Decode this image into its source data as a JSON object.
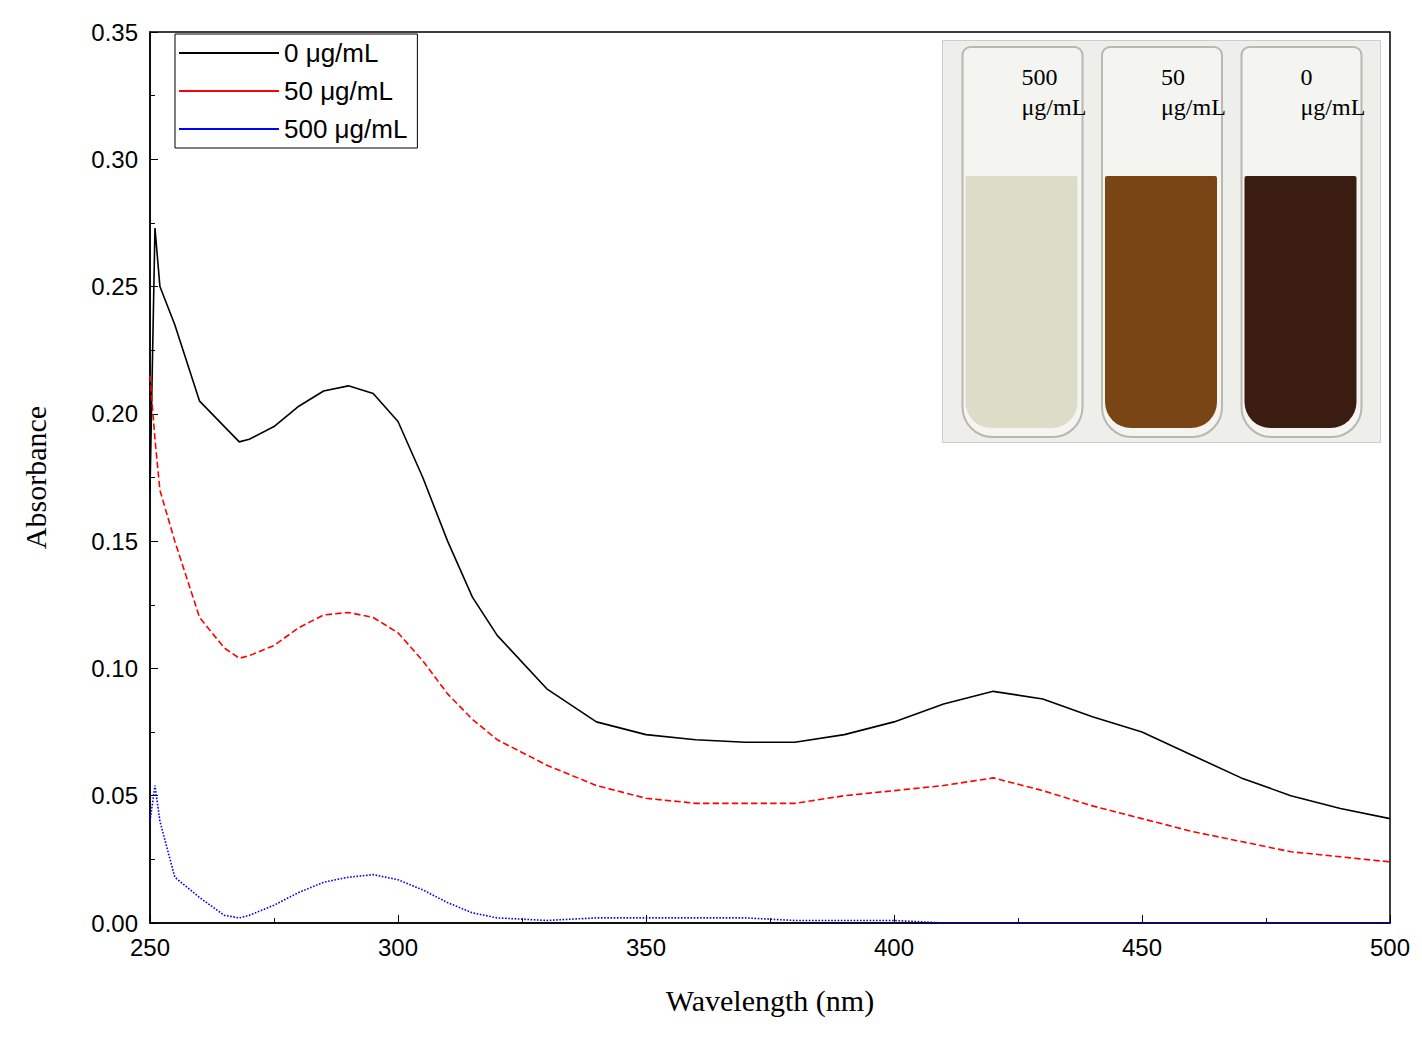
{
  "chart_data": {
    "type": "line",
    "x_label": "Wavelength (nm)",
    "y_label": "Absorbance",
    "x": [
      250,
      251,
      252,
      255,
      260,
      265,
      268,
      270,
      275,
      280,
      285,
      290,
      295,
      300,
      305,
      310,
      315,
      320,
      330,
      340,
      350,
      360,
      370,
      380,
      390,
      400,
      410,
      420,
      430,
      440,
      450,
      460,
      470,
      480,
      490,
      500
    ],
    "series": [
      {
        "name": "0 μg/mL",
        "color": "#000000",
        "line_style": "solid",
        "values": [
          0.17,
          0.273,
          0.25,
          0.235,
          0.205,
          0.195,
          0.189,
          0.19,
          0.195,
          0.203,
          0.209,
          0.211,
          0.208,
          0.197,
          0.175,
          0.15,
          0.128,
          0.113,
          0.092,
          0.079,
          0.074,
          0.072,
          0.071,
          0.071,
          0.074,
          0.079,
          0.086,
          0.091,
          0.088,
          0.081,
          0.075,
          0.066,
          0.057,
          0.05,
          0.045,
          0.041
        ]
      },
      {
        "name": "50 μg/mL",
        "color": "#ff0000",
        "line_style": "dashed",
        "values": [
          0.215,
          0.19,
          0.17,
          0.15,
          0.12,
          0.108,
          0.104,
          0.105,
          0.109,
          0.116,
          0.121,
          0.122,
          0.12,
          0.114,
          0.103,
          0.09,
          0.08,
          0.072,
          0.062,
          0.054,
          0.049,
          0.047,
          0.047,
          0.047,
          0.05,
          0.052,
          0.054,
          0.057,
          0.052,
          0.046,
          0.041,
          0.036,
          0.032,
          0.028,
          0.026,
          0.024
        ]
      },
      {
        "name": "500 μg/mL",
        "color": "#0000ff",
        "line_style": "dotted",
        "values": [
          0.04,
          0.054,
          0.04,
          0.018,
          0.01,
          0.003,
          0.002,
          0.003,
          0.007,
          0.012,
          0.016,
          0.018,
          0.019,
          0.017,
          0.013,
          0.008,
          0.004,
          0.002,
          0.001,
          0.002,
          0.002,
          0.002,
          0.002,
          0.001,
          0.001,
          0.001,
          0,
          0,
          0,
          0,
          0,
          0,
          0,
          0,
          0,
          0
        ]
      }
    ],
    "xlim": [
      250,
      500
    ],
    "xticks": [
      250,
      300,
      350,
      400,
      450,
      500
    ],
    "ylim": [
      0,
      0.35
    ],
    "yticks": [
      {
        "value": 0,
        "label": "0.00"
      },
      {
        "value": 0.05,
        "label": "0.05"
      },
      {
        "value": 0.1,
        "label": "0.10"
      },
      {
        "value": 0.15,
        "label": "0.15"
      },
      {
        "value": 0.2,
        "label": "0.20"
      },
      {
        "value": 0.25,
        "label": "0.25"
      },
      {
        "value": 0.3,
        "label": "0.30"
      },
      {
        "value": 0.35,
        "label": "0.35"
      }
    ],
    "legend": "upper left",
    "grid": false,
    "annotations": [
      "500 μg/mL",
      "50 μg/mL",
      "0 μg/mL"
    ]
  }
}
